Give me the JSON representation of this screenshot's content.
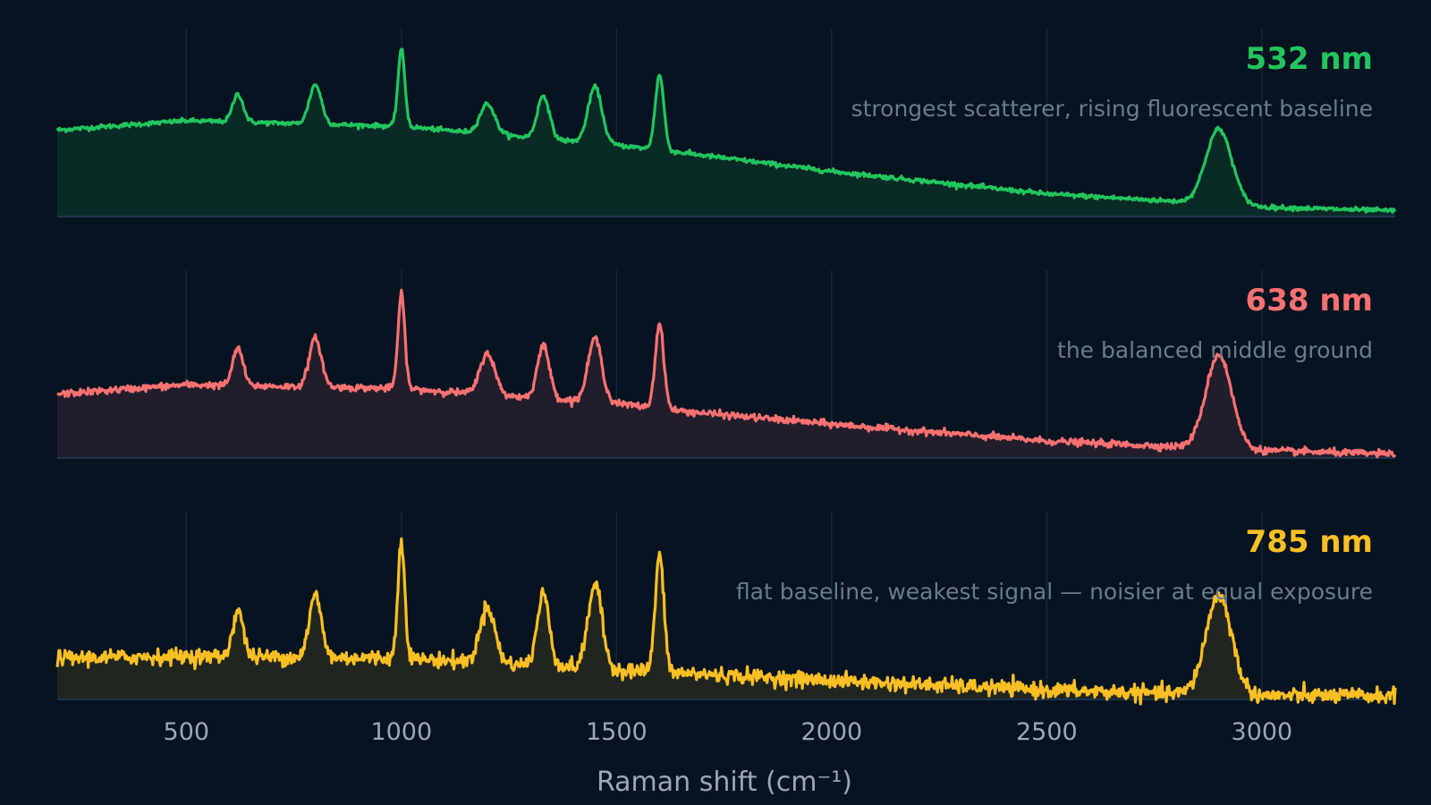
{
  "chart_data": {
    "type": "line",
    "xlabel": "Raman shift (cm⁻¹)",
    "xlim": [
      200,
      3310
    ],
    "x_ticks": [
      500,
      1000,
      1500,
      2000,
      2500,
      3000
    ],
    "x_tick_labels": [
      "500",
      "1000",
      "1500",
      "2000",
      "2500",
      "3000"
    ],
    "grid": "vertical",
    "peak_positions": [
      620,
      800,
      1000,
      1200,
      1330,
      1450,
      1600,
      2900
    ],
    "panels": [
      {
        "label": "532 nm",
        "caption": "strongest scatterer, rising fluorescent baseline",
        "color": "#22c55e",
        "fill_color": "#0a2a26",
        "noise": 0.006,
        "baseline_x": [
          200,
          500,
          1000,
          1500,
          1650,
          2000,
          2500,
          2800,
          3000,
          3310
        ],
        "baseline_y": [
          0.46,
          0.51,
          0.48,
          0.38,
          0.34,
          0.24,
          0.12,
          0.08,
          0.05,
          0.03
        ],
        "peak_heights": [
          0.15,
          0.21,
          0.41,
          0.16,
          0.23,
          0.3,
          0.4,
          0.4
        ]
      },
      {
        "label": "638 nm",
        "caption": "the balanced middle ground",
        "color": "#f87171",
        "fill_color": "#221d2a",
        "noise": 0.009,
        "baseline_x": [
          200,
          500,
          1000,
          1500,
          1650,
          2000,
          2500,
          2800,
          3000,
          3310
        ],
        "baseline_y": [
          0.34,
          0.39,
          0.37,
          0.29,
          0.25,
          0.18,
          0.09,
          0.06,
          0.04,
          0.02
        ],
        "peak_heights": [
          0.2,
          0.26,
          0.5,
          0.22,
          0.28,
          0.34,
          0.45,
          0.5
        ]
      },
      {
        "label": "785 nm",
        "caption": "flat baseline, weakest signal — noisier at equal exposure",
        "color": "#fbbf24",
        "fill_color": "#20261f",
        "noise": 0.02,
        "baseline_x": [
          200,
          500,
          1000,
          1500,
          1650,
          2000,
          2500,
          2800,
          3000,
          3310
        ],
        "baseline_y": [
          0.22,
          0.23,
          0.22,
          0.16,
          0.14,
          0.1,
          0.05,
          0.03,
          0.02,
          0.02
        ],
        "peak_heights": [
          0.25,
          0.33,
          0.63,
          0.3,
          0.38,
          0.45,
          0.62,
          0.53
        ]
      }
    ]
  }
}
